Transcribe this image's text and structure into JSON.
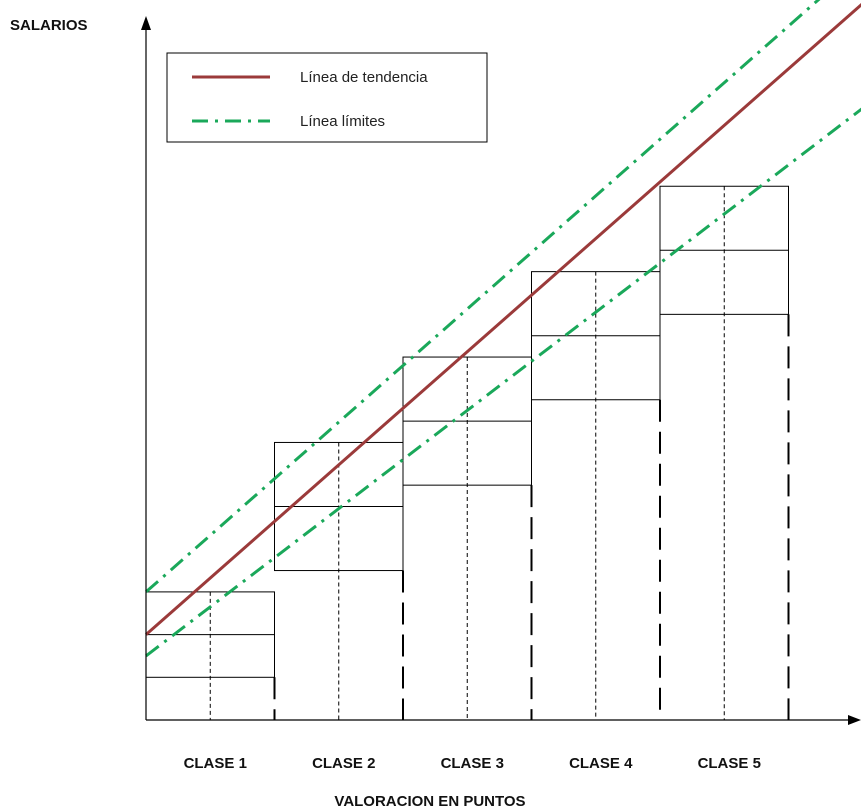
{
  "chart_data": {
    "type": "diagram",
    "ylabel": "SALARIOS",
    "xlabel": "VALORACION EN PUNTOS",
    "legend": {
      "placement": "top-left",
      "entries": [
        {
          "label": "Línea de tendencia",
          "color": "#9b3a3a",
          "style": "solid"
        },
        {
          "label": "Línea límites",
          "color": "#1aa85a",
          "style": "dash-dot"
        }
      ]
    },
    "categories": [
      "CLASE 1",
      "CLASE 2",
      "CLASE 3",
      "CLASE 4",
      "CLASE 5"
    ],
    "salary_bands": [
      {
        "class": "CLASE 1",
        "min": 1,
        "mid": 2,
        "max": 3
      },
      {
        "class": "CLASE 2",
        "min": 3.5,
        "mid": 5,
        "max": 6.5
      },
      {
        "class": "CLASE 3",
        "min": 5.5,
        "mid": 7,
        "max": 8.5
      },
      {
        "class": "CLASE 4",
        "min": 7.5,
        "mid": 9,
        "max": 10.5
      },
      {
        "class": "CLASE 5",
        "min": 9.5,
        "mid": 11,
        "max": 12.5
      }
    ],
    "x_range": [
      0,
      5.6
    ],
    "y_range": [
      0,
      16
    ],
    "trend_line": {
      "y_at_x0": 2,
      "slope": 2.65
    },
    "limit_upper": {
      "y_at_x0": 3,
      "slope": 2.65
    },
    "limit_lower": {
      "y_at_x0": 1.5,
      "slope": 2.3
    }
  }
}
